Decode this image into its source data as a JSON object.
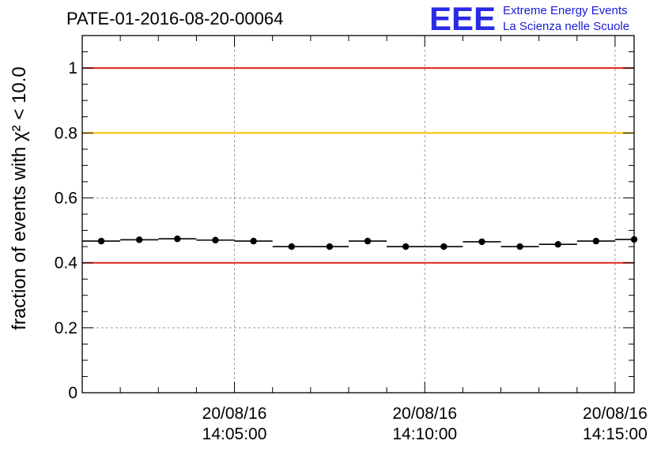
{
  "header": {
    "title": "PATE-01-2016-08-20-00064",
    "logo_mark": "EEE",
    "logo_line1": "Extreme Energy Events",
    "logo_line2": "La Scienza nelle Scuole"
  },
  "chart_data": {
    "type": "scatter",
    "title": "PATE-01-2016-08-20-00064",
    "ylabel": "fraction of events with χ² < 10.0",
    "xlabel": "",
    "ylim": [
      0,
      1.1
    ],
    "xlim": [
      "14:01:00",
      "14:15:30"
    ],
    "grid": true,
    "x_ticks": [
      {
        "date": "20/08/16",
        "time": "14:05:00"
      },
      {
        "date": "20/08/16",
        "time": "14:10:00"
      },
      {
        "date": "20/08/16",
        "time": "14:15:00"
      }
    ],
    "y_ticks": [
      "0",
      "0.2",
      "0.4",
      "0.6",
      "0.8",
      "1"
    ],
    "reference_lines": [
      {
        "y": 1.0,
        "color": "#e0201c"
      },
      {
        "y": 0.8,
        "color": "#ffc000"
      },
      {
        "y": 0.4,
        "color": "#e0201c"
      }
    ],
    "series": [
      {
        "color": "#000000",
        "bin_width_s": 60,
        "x": [
          "14:01:30",
          "14:02:30",
          "14:03:30",
          "14:04:30",
          "14:05:30",
          "14:06:30",
          "14:07:30",
          "14:08:30",
          "14:09:30",
          "14:10:30",
          "14:11:30",
          "14:12:30",
          "14:13:30",
          "14:14:30",
          "14:15:30"
        ],
        "y": [
          0.467,
          0.471,
          0.474,
          0.47,
          0.467,
          0.45,
          0.45,
          0.467,
          0.45,
          0.45,
          0.465,
          0.45,
          0.457,
          0.467,
          0.472
        ]
      }
    ]
  }
}
